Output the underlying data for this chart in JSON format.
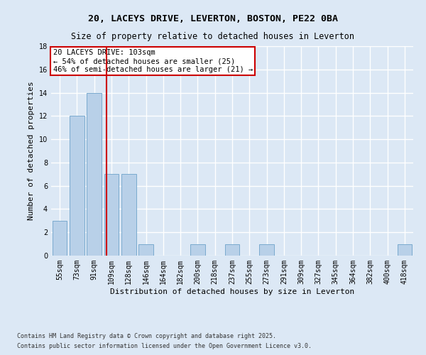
{
  "title1": "20, LACEYS DRIVE, LEVERTON, BOSTON, PE22 0BA",
  "title2": "Size of property relative to detached houses in Leverton",
  "xlabel": "Distribution of detached houses by size in Leverton",
  "ylabel": "Number of detached properties",
  "categories": [
    "55sqm",
    "73sqm",
    "91sqm",
    "109sqm",
    "128sqm",
    "146sqm",
    "164sqm",
    "182sqm",
    "200sqm",
    "218sqm",
    "237sqm",
    "255sqm",
    "273sqm",
    "291sqm",
    "309sqm",
    "327sqm",
    "345sqm",
    "364sqm",
    "382sqm",
    "400sqm",
    "418sqm"
  ],
  "values": [
    3,
    12,
    14,
    7,
    7,
    1,
    0,
    0,
    1,
    0,
    1,
    0,
    1,
    0,
    0,
    0,
    0,
    0,
    0,
    0,
    1
  ],
  "bar_color": "#b8d0e8",
  "bar_edge_color": "#7aaacf",
  "background_color": "#dce8f5",
  "grid_color": "#ffffff",
  "annotation_box_text": "20 LACEYS DRIVE: 103sqm\n← 54% of detached houses are smaller (25)\n46% of semi-detached houses are larger (21) →",
  "annotation_box_color": "#ffffff",
  "annotation_box_edge_color": "#cc0000",
  "vline_color": "#cc0000",
  "vline_x": 2.72,
  "ylim": [
    0,
    18
  ],
  "yticks": [
    0,
    2,
    4,
    6,
    8,
    10,
    12,
    14,
    16,
    18
  ],
  "footer1": "Contains HM Land Registry data © Crown copyright and database right 2025.",
  "footer2": "Contains public sector information licensed under the Open Government Licence v3.0.",
  "title_fontsize": 9.5,
  "subtitle_fontsize": 8.5,
  "tick_fontsize": 7,
  "label_fontsize": 8,
  "annotation_fontsize": 7.5,
  "footer_fontsize": 6
}
